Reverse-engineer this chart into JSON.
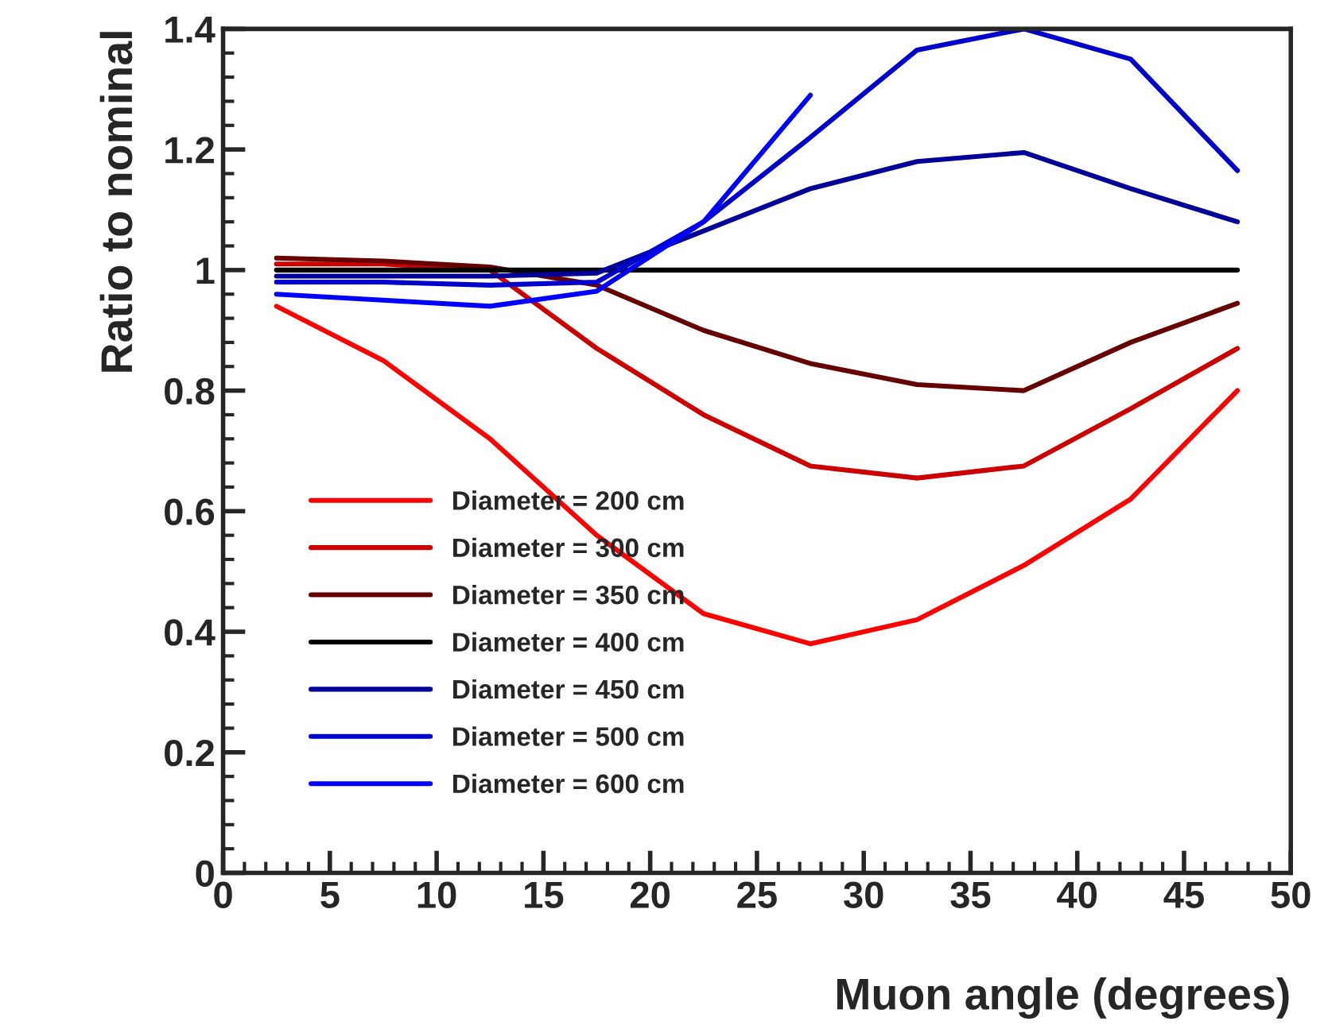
{
  "chart_data": {
    "type": "line",
    "xlabel": "Muon angle (degrees)",
    "ylabel": "Ratio to nominal",
    "x": [
      2.5,
      7.5,
      12.5,
      17.5,
      22.5,
      27.5,
      32.5,
      37.5,
      42.5,
      47.5
    ],
    "series": [
      {
        "name": "Diameter = 200 cm",
        "color": "#ff0000",
        "values": [
          0.94,
          0.85,
          0.72,
          0.56,
          0.43,
          0.38,
          0.42,
          0.51,
          0.62,
          0.8
        ]
      },
      {
        "name": "Diameter = 300 cm",
        "color": "#cc0000",
        "values": [
          1.01,
          1.01,
          1.0,
          0.87,
          0.76,
          0.675,
          0.655,
          0.675,
          0.77,
          0.87
        ]
      },
      {
        "name": "Diameter = 350 cm",
        "color": "#660000",
        "values": [
          1.02,
          1.015,
          1.005,
          0.975,
          0.9,
          0.845,
          0.81,
          0.8,
          0.88,
          0.945
        ]
      },
      {
        "name": "Diameter = 400 cm",
        "color": "#000000",
        "values": [
          1.0,
          1.0,
          1.0,
          1.0,
          1.0,
          1.0,
          1.0,
          1.0,
          1.0,
          1.0
        ]
      },
      {
        "name": "Diameter = 450 cm",
        "color": "#000099",
        "values": [
          0.99,
          0.99,
          0.99,
          0.995,
          1.065,
          1.135,
          1.18,
          1.195,
          1.135,
          1.08
        ]
      },
      {
        "name": "Diameter = 500 cm",
        "color": "#0000cc",
        "values": [
          0.98,
          0.98,
          0.975,
          0.98,
          1.08,
          1.22,
          1.365,
          1.4,
          1.35,
          1.165
        ]
      },
      {
        "name": "Diameter = 600 cm",
        "color": "#0000ff",
        "values": [
          0.96,
          0.95,
          0.94,
          0.965,
          1.08,
          1.29,
          null,
          null,
          null,
          null
        ]
      }
    ],
    "xlim": [
      0,
      50
    ],
    "xticks": [
      0,
      5,
      10,
      15,
      20,
      25,
      30,
      35,
      40,
      45,
      50
    ],
    "ylim": [
      0,
      1.4
    ],
    "yticks": [
      0,
      0.2,
      0.4,
      0.6,
      0.8,
      1,
      1.2,
      1.4
    ],
    "grid": false,
    "legend": "bottom left",
    "line_style": "solid",
    "marker": "none"
  }
}
